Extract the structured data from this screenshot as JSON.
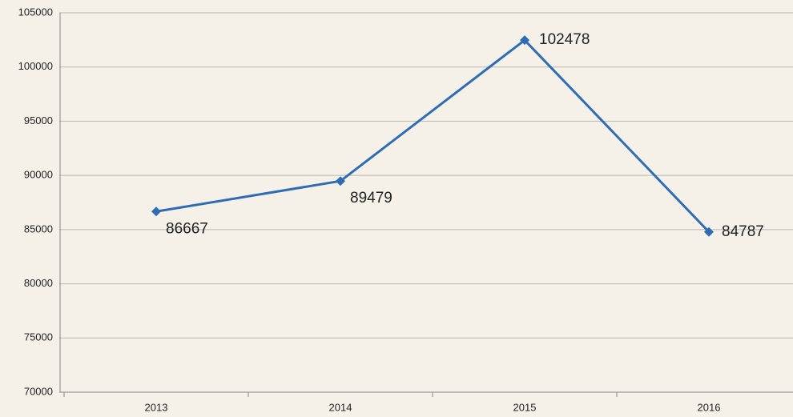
{
  "chart_data": {
    "type": "line",
    "categories": [
      "2013",
      "2014",
      "2015",
      "2016"
    ],
    "values": [
      86667,
      89479,
      102478,
      84787
    ],
    "color": "#2e6db4",
    "ylim": [
      70000,
      105000
    ],
    "yticks": [
      70000,
      75000,
      80000,
      85000,
      90000,
      95000,
      100000,
      105000
    ],
    "grid": true
  }
}
